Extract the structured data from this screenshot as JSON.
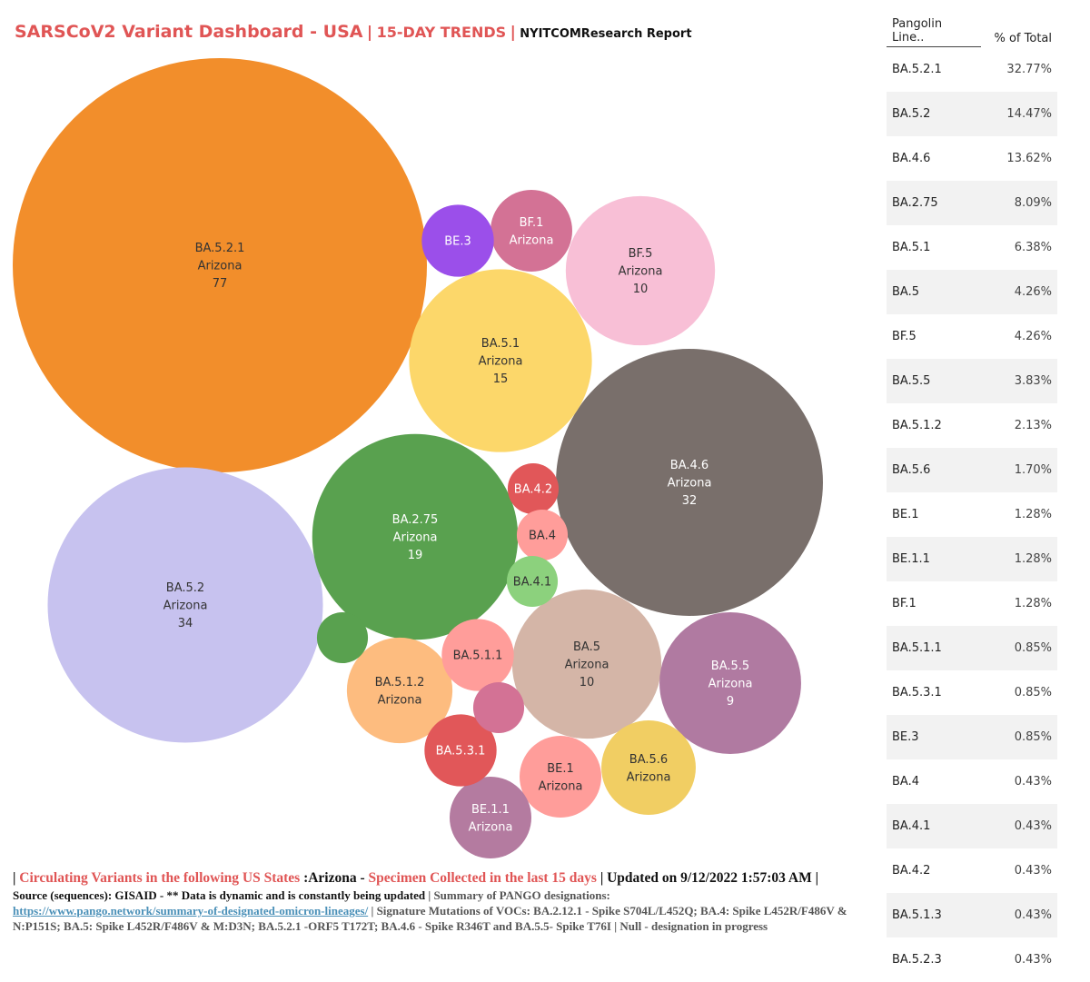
{
  "header": {
    "title": "SARSCoV2 Variant Dashboard - USA",
    "separator": "|",
    "subtitle": "15-DAY TRENDS",
    "report": "NYITCOMResearch Report"
  },
  "table": {
    "col1": "Pangolin Line..",
    "col2": "% of Total",
    "rows": [
      {
        "lineage": "BA.5.2.1",
        "pct": "32.77%"
      },
      {
        "lineage": "BA.5.2",
        "pct": "14.47%"
      },
      {
        "lineage": "BA.4.6",
        "pct": "13.62%"
      },
      {
        "lineage": "BA.2.75",
        "pct": "8.09%"
      },
      {
        "lineage": "BA.5.1",
        "pct": "6.38%"
      },
      {
        "lineage": "BA.5",
        "pct": "4.26%"
      },
      {
        "lineage": "BF.5",
        "pct": "4.26%"
      },
      {
        "lineage": "BA.5.5",
        "pct": "3.83%"
      },
      {
        "lineage": "BA.5.1.2",
        "pct": "2.13%"
      },
      {
        "lineage": "BA.5.6",
        "pct": "1.70%"
      },
      {
        "lineage": "BE.1",
        "pct": "1.28%"
      },
      {
        "lineage": "BE.1.1",
        "pct": "1.28%"
      },
      {
        "lineage": "BF.1",
        "pct": "1.28%"
      },
      {
        "lineage": "BA.5.1.1",
        "pct": "0.85%"
      },
      {
        "lineage": "BA.5.3.1",
        "pct": "0.85%"
      },
      {
        "lineage": "BE.3",
        "pct": "0.85%"
      },
      {
        "lineage": "BA.4",
        "pct": "0.43%"
      },
      {
        "lineage": "BA.4.1",
        "pct": "0.43%"
      },
      {
        "lineage": "BA.4.2",
        "pct": "0.43%"
      },
      {
        "lineage": "BA.5.1.3",
        "pct": "0.43%"
      },
      {
        "lineage": "BA.5.2.3",
        "pct": "0.43%"
      }
    ]
  },
  "chart_data": {
    "type": "bubble",
    "title": "SARSCoV2 Variant Dashboard - USA",
    "state": "Arizona",
    "bubbles": [
      {
        "lineage": "BA.5.2.1",
        "state": "Arizona",
        "count": 77,
        "color": "#f28e2b",
        "labels": [
          "BA.5.2.1",
          "Arizona",
          "77"
        ]
      },
      {
        "lineage": "BA.5.2",
        "state": "Arizona",
        "count": 34,
        "color": "#c7c2ef",
        "labels": [
          "BA.5.2",
          "Arizona",
          "34"
        ]
      },
      {
        "lineage": "BA.4.6",
        "state": "Arizona",
        "count": 32,
        "color": "#796f6b",
        "labels": [
          "BA.4.6",
          "Arizona",
          "32"
        ]
      },
      {
        "lineage": "BA.2.75",
        "state": "Arizona",
        "count": 19,
        "color": "#59a14f",
        "labels": [
          "BA.2.75",
          "Arizona",
          "19"
        ]
      },
      {
        "lineage": "BA.5.1",
        "state": "Arizona",
        "count": 15,
        "color": "#fcd76a",
        "labels": [
          "BA.5.1",
          "Arizona",
          "15"
        ]
      },
      {
        "lineage": "BF.5",
        "state": "Arizona",
        "count": 10,
        "color": "#f8bfd6",
        "labels": [
          "BF.5",
          "Arizona",
          "10"
        ]
      },
      {
        "lineage": "BA.5",
        "state": "Arizona",
        "count": 10,
        "color": "#d4b5a7",
        "labels": [
          "BA.5",
          "Arizona",
          "10"
        ]
      },
      {
        "lineage": "BA.5.5",
        "state": "Arizona",
        "count": 9,
        "color": "#b07aa1",
        "labels": [
          "BA.5.5",
          "Arizona",
          "9"
        ]
      },
      {
        "lineage": "BA.5.1.2",
        "state": "Arizona",
        "count": 5,
        "color": "#fdbc7f",
        "labels": [
          "BA.5.1.2",
          "Arizona"
        ]
      },
      {
        "lineage": "BA.5.6",
        "state": "Arizona",
        "count": 4,
        "color": "#f1ce63",
        "labels": [
          "BA.5.6",
          "Arizona"
        ]
      },
      {
        "lineage": "BF.1",
        "state": "Arizona",
        "count": 3,
        "color": "#d37295",
        "labels": [
          "BF.1",
          "Arizona"
        ]
      },
      {
        "lineage": "BE.1",
        "state": "Arizona",
        "count": 3,
        "color": "#ff9d9a",
        "labels": [
          "BE.1",
          "Arizona"
        ]
      },
      {
        "lineage": "BE.1.1",
        "state": "Arizona",
        "count": 3,
        "color": "#b47ba0",
        "labels": [
          "BE.1.1",
          "Arizona"
        ]
      },
      {
        "lineage": "BE.3",
        "state": "Arizona",
        "count": 2,
        "color": "#9b4fea",
        "labels": [
          "BE.3"
        ]
      },
      {
        "lineage": "BA.5.1.1",
        "state": "Arizona",
        "count": 2,
        "color": "#ff9d9a",
        "labels": [
          "BA.5.1.1"
        ]
      },
      {
        "lineage": "BA.5.3.1",
        "state": "Arizona",
        "count": 2,
        "color": "#e15759",
        "labels": [
          "BA.5.3.1"
        ]
      },
      {
        "lineage": "BA.4.2",
        "state": "Arizona",
        "count": 1,
        "color": "#e15759",
        "labels": [
          "BA.4.2"
        ]
      },
      {
        "lineage": "BA.4",
        "state": "Arizona",
        "count": 1,
        "color": "#ff9d9a",
        "labels": [
          "BA.4"
        ]
      },
      {
        "lineage": "BA.4.1",
        "state": "Arizona",
        "count": 1,
        "color": "#8cd17d",
        "labels": [
          "BA.4.1"
        ]
      },
      {
        "lineage": "BA.5.1.3",
        "state": "Arizona",
        "count": 1,
        "color": "#59a14f",
        "labels": []
      },
      {
        "lineage": "BA.5.2.3",
        "state": "Arizona",
        "count": 1,
        "color": "#d37295",
        "labels": []
      }
    ]
  },
  "footer": {
    "p1": "| ",
    "circ": "Circulating Variants in the following US States",
    "state": " :Arizona - ",
    "specimen": "Specimen Collected in the last 15 days",
    "updated": " | Updated on 9/12/2022 1:57:03 AM |",
    "source": "Source (sequences): GISAID - ** Data is dynamic and is constantly being updated",
    "summary": " | Summary of PANGO designations:",
    "link": "https://www.pango.network/summary-of-designated-omicron-lineages/",
    "mutations": " | Signature Mutations of  VOCs: BA.2.12.1 - Spike S704L/L452Q; BA.4: Spike L452R/F486V & N:P151S; BA.5: Spike L452R/F486V & M:D3N; BA.5.2.1 -ORF5 T172T; BA.4.6 - Spike R346T and BA.5.5- Spike T76I | Null - designation in progress"
  }
}
